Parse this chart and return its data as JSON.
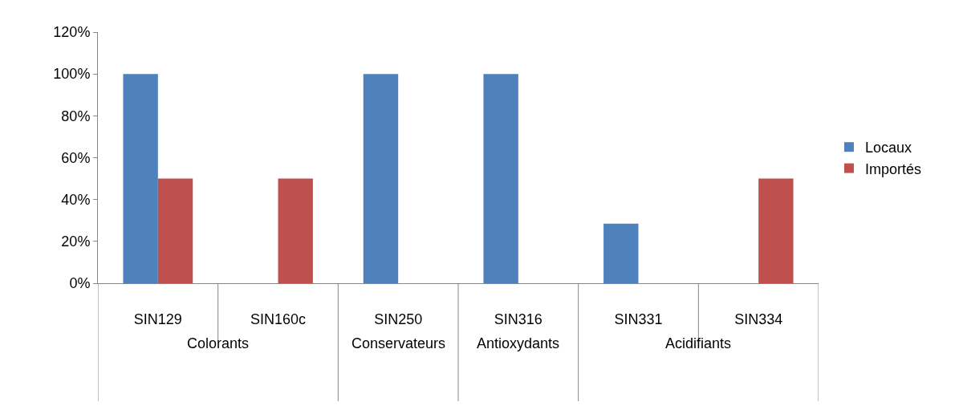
{
  "chart_data": {
    "type": "bar",
    "categories": [
      "SIN129",
      "SIN160c",
      "SIN250",
      "SIN316",
      "SIN331",
      "SIN334"
    ],
    "series": [
      {
        "name": "Locaux",
        "color": "#4f81bd",
        "values": [
          100,
          0,
          100,
          100,
          28.5,
          0
        ]
      },
      {
        "name": "Importés",
        "color": "#c0504d",
        "values": [
          50,
          50,
          0,
          0,
          0,
          50
        ]
      }
    ],
    "ylim": [
      0,
      120
    ],
    "yticks": [
      {
        "value": 0,
        "label": "0%"
      },
      {
        "value": 20,
        "label": "20%"
      },
      {
        "value": 40,
        "label": "40%"
      },
      {
        "value": 60,
        "label": "60%"
      },
      {
        "value": 80,
        "label": "80%"
      },
      {
        "value": 100,
        "label": "100%"
      },
      {
        "value": 120,
        "label": "120%"
      }
    ],
    "annotations": [
      "Colorants",
      "Conservateurs",
      "Antioxydants",
      "Acidifiants"
    ],
    "legend": "right"
  }
}
